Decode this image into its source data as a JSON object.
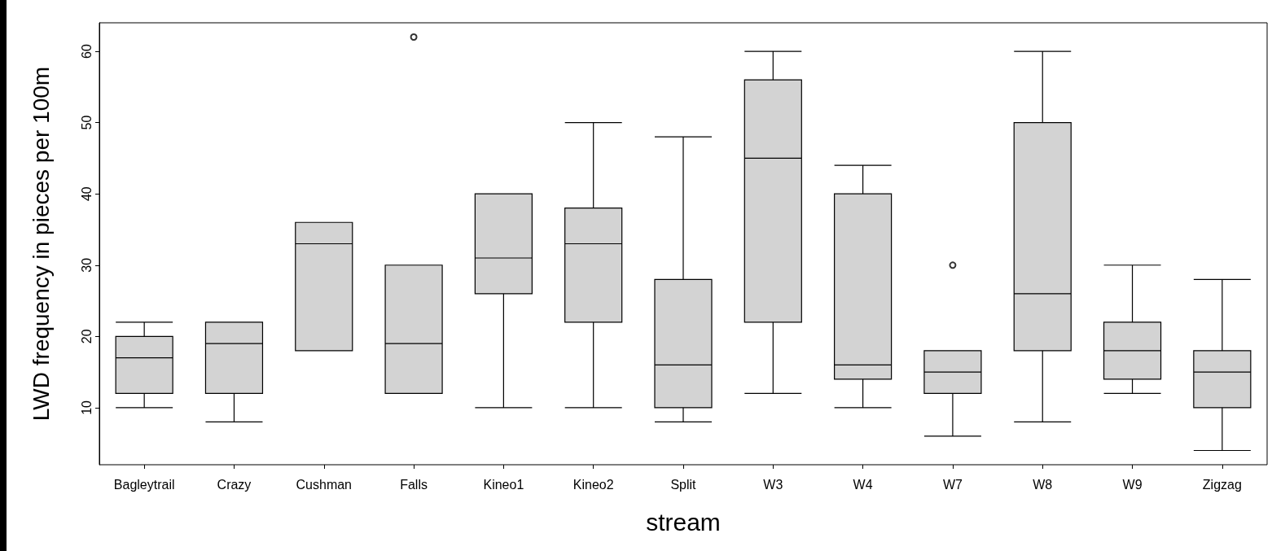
{
  "chart_data": {
    "type": "box",
    "xlabel": "stream",
    "ylabel": "LWD frequency in pieces per 100m",
    "color": "#d3d3d3",
    "categories": [
      "Bagleytrail",
      "Crazy",
      "Cushman",
      "Falls",
      "Kineo1",
      "Kineo2",
      "Split",
      "W3",
      "W4",
      "W7",
      "W8",
      "W9",
      "Zigzag"
    ],
    "boxes": [
      {
        "low": 10,
        "q1": 12,
        "median": 17,
        "q3": 20,
        "high": 22
      },
      {
        "low": 8,
        "q1": 12,
        "median": 19,
        "q3": 22,
        "high": 22
      },
      {
        "low": 18,
        "q1": 18,
        "median": 33,
        "q3": 36,
        "high": 36
      },
      {
        "low": 12,
        "q1": 12,
        "median": 19,
        "q3": 30,
        "high": 30,
        "outliers": [
          62
        ]
      },
      {
        "low": 10,
        "q1": 26,
        "median": 31,
        "q3": 40,
        "high": 40
      },
      {
        "low": 10,
        "q1": 22,
        "median": 33,
        "q3": 38,
        "high": 50
      },
      {
        "low": 8,
        "q1": 10,
        "median": 16,
        "q3": 28,
        "high": 48
      },
      {
        "low": 12,
        "q1": 22,
        "median": 45,
        "q3": 56,
        "high": 60
      },
      {
        "low": 10,
        "q1": 14,
        "median": 16,
        "q3": 40,
        "high": 44
      },
      {
        "low": 6,
        "q1": 12,
        "median": 15,
        "q3": 18,
        "high": 18,
        "outliers": [
          30
        ]
      },
      {
        "low": 8,
        "q1": 18,
        "median": 26,
        "q3": 50,
        "high": 60
      },
      {
        "low": 12,
        "q1": 14,
        "median": 18,
        "q3": 22,
        "high": 30
      },
      {
        "low": 4,
        "q1": 10,
        "median": 15,
        "q3": 18,
        "high": 28
      }
    ],
    "ylim": [
      2,
      64
    ],
    "yticks": [
      10,
      20,
      30,
      40,
      50,
      60
    ]
  }
}
